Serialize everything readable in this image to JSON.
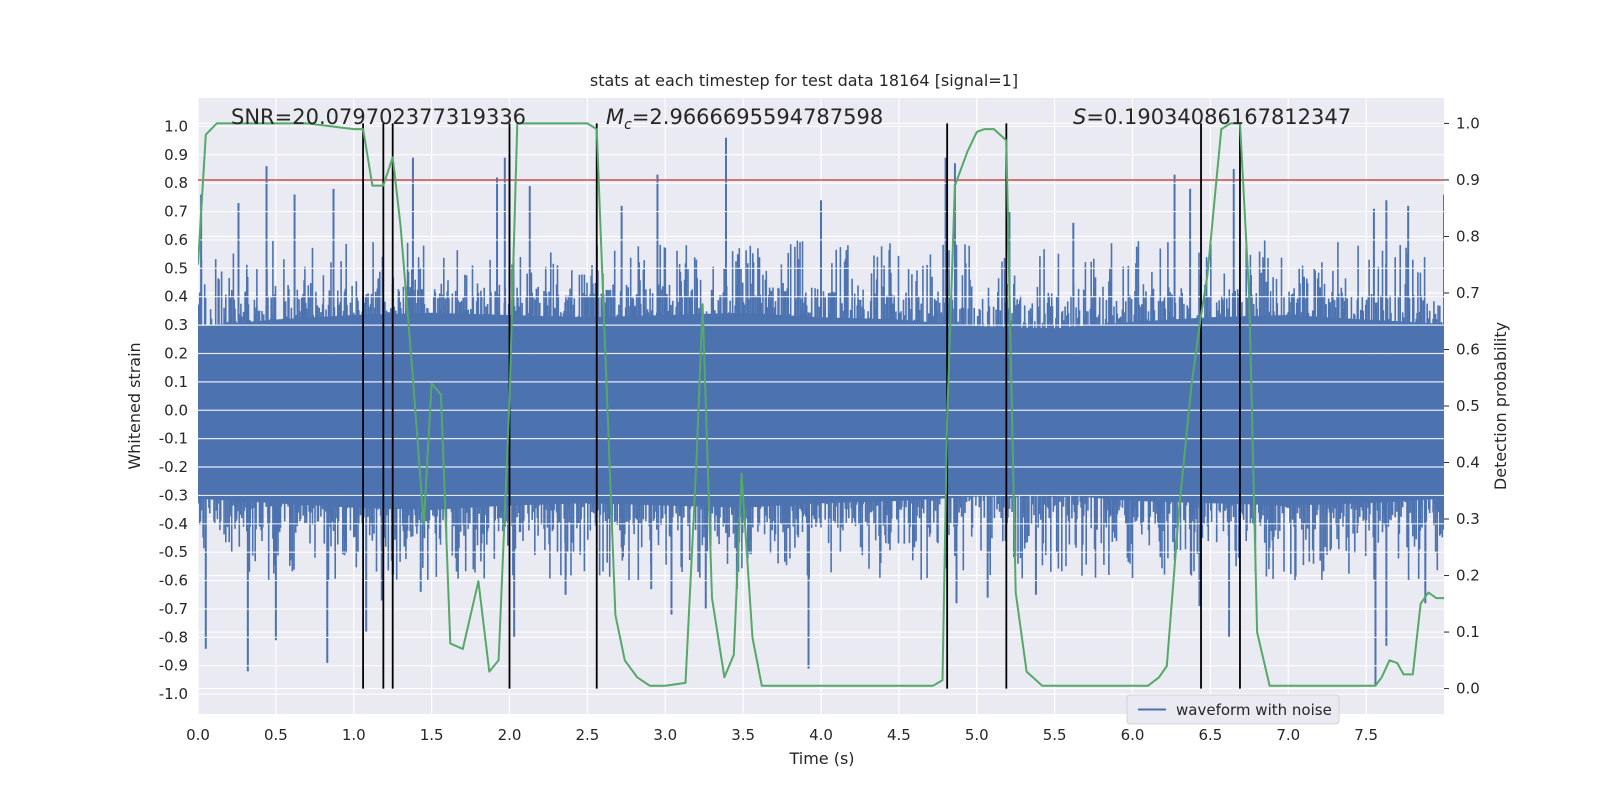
{
  "chart_data": {
    "type": "line",
    "title": "stats at each timestep for test data 18164 [signal=1]",
    "xlabel": "Time (s)",
    "ylabel": "Whitened strain",
    "ylabel_right": "Detection probability",
    "xlim": [
      0.0,
      8.0
    ],
    "ylim": [
      -1.07,
      1.1
    ],
    "ylim_right": [
      -0.045,
      1.045
    ],
    "x_ticks": [
      "0.0",
      "0.5",
      "1.0",
      "1.5",
      "2.0",
      "2.5",
      "3.0",
      "3.5",
      "4.0",
      "4.5",
      "5.0",
      "5.5",
      "6.0",
      "6.5",
      "7.0",
      "7.5"
    ],
    "y_ticks": [
      "-1.0",
      "-0.9",
      "-0.8",
      "-0.7",
      "-0.6",
      "-0.5",
      "-0.4",
      "-0.3",
      "-0.2",
      "-0.1",
      "0.0",
      "0.1",
      "0.2",
      "0.3",
      "0.4",
      "0.5",
      "0.6",
      "0.7",
      "0.8",
      "0.9",
      "1.0"
    ],
    "y_ticks_right": [
      "0.0",
      "0.1",
      "0.2",
      "0.3",
      "0.4",
      "0.5",
      "0.6",
      "0.7",
      "0.8",
      "0.9",
      "1.0"
    ],
    "annotations": {
      "snr": "SNR=20.079702377319336",
      "mc_symbol": "M",
      "mc_sub": "c",
      "mc_value": "=2.9666695594787598",
      "s_symbol": "S",
      "s_value": "=0.19034086167812347"
    },
    "threshold": {
      "value": 0.9,
      "axis": "right",
      "color": "#c44e52"
    },
    "vlines": [
      1.06,
      1.19,
      1.25,
      2.0,
      2.56,
      4.81,
      5.19,
      6.44,
      6.69
    ],
    "legend": {
      "label": "waveform with noise",
      "placement": "lower-right"
    },
    "series": [
      {
        "name": "waveform with noise",
        "color": "#4c72b0",
        "axis": "left",
        "envelope_upper": [
          0.38,
          0.41,
          0.43,
          0.44,
          0.43,
          0.42,
          0.43,
          0.44,
          0.42,
          0.41,
          0.38,
          0.37,
          0.4,
          0.42,
          0.43,
          0.41,
          0.39
        ],
        "envelope_lower": [
          -0.4,
          -0.42,
          -0.44,
          -0.45,
          -0.43,
          -0.42,
          -0.43,
          -0.44,
          -0.42,
          -0.41,
          -0.39,
          -0.38,
          -0.41,
          -0.42,
          -0.43,
          -0.42,
          -0.4
        ],
        "peaks": [
          [
            0.02,
            0.76
          ],
          [
            0.26,
            0.73
          ],
          [
            0.44,
            0.86
          ],
          [
            0.62,
            0.76
          ],
          [
            0.87,
            0.78
          ],
          [
            1.38,
            0.89
          ],
          [
            1.92,
            0.82
          ],
          [
            1.97,
            0.89
          ],
          [
            2.0,
            0.9
          ],
          [
            2.13,
            0.79
          ],
          [
            2.72,
            0.72
          ],
          [
            2.95,
            0.83
          ],
          [
            3.39,
            0.96
          ],
          [
            4.0,
            0.74
          ],
          [
            4.8,
            0.89
          ],
          [
            4.86,
            0.87
          ],
          [
            5.21,
            0.7
          ],
          [
            5.62,
            0.66
          ],
          [
            6.27,
            0.83
          ],
          [
            6.37,
            0.78
          ],
          [
            6.65,
            0.85
          ],
          [
            7.55,
            0.71
          ],
          [
            7.63,
            0.74
          ],
          [
            7.77,
            0.72
          ],
          [
            8.0,
            0.76
          ]
        ],
        "troughs": [
          [
            0.05,
            -0.84
          ],
          [
            0.32,
            -0.92
          ],
          [
            0.5,
            -0.81
          ],
          [
            0.83,
            -0.89
          ],
          [
            1.08,
            -0.78
          ],
          [
            1.18,
            -0.67
          ],
          [
            1.43,
            -0.64
          ],
          [
            2.03,
            -0.8
          ],
          [
            2.36,
            -0.65
          ],
          [
            2.91,
            -0.63
          ],
          [
            3.04,
            -0.72
          ],
          [
            3.26,
            -0.7
          ],
          [
            3.46,
            -0.63
          ],
          [
            3.92,
            -0.91
          ],
          [
            4.87,
            -0.68
          ],
          [
            5.07,
            -0.66
          ],
          [
            5.38,
            -0.65
          ],
          [
            6.43,
            -0.69
          ],
          [
            6.62,
            -0.8
          ],
          [
            7.56,
            -0.97
          ],
          [
            7.63,
            -0.83
          ],
          [
            7.88,
            -0.68
          ]
        ]
      },
      {
        "name": "Detection probability",
        "color": "#55a868",
        "axis": "right",
        "x": [
          0.0,
          0.05,
          0.12,
          0.2,
          0.4,
          0.7,
          0.85,
          1.0,
          1.06,
          1.12,
          1.19,
          1.25,
          1.3,
          1.38,
          1.45,
          1.5,
          1.56,
          1.62,
          1.7,
          1.8,
          1.87,
          1.93,
          2.0,
          2.05,
          2.15,
          2.35,
          2.5,
          2.56,
          2.6,
          2.68,
          2.74,
          2.82,
          2.9,
          3.0,
          3.13,
          3.2,
          3.24,
          3.3,
          3.38,
          3.44,
          3.49,
          3.56,
          3.62,
          3.75,
          3.9,
          4.1,
          4.4,
          4.6,
          4.72,
          4.78,
          4.81,
          4.86,
          4.94,
          5.0,
          5.05,
          5.11,
          5.19,
          5.25,
          5.32,
          5.42,
          5.6,
          5.85,
          6.1,
          6.17,
          6.22,
          6.3,
          6.38,
          6.44,
          6.48,
          6.57,
          6.63,
          6.69,
          6.75,
          6.8,
          6.88,
          7.0,
          7.2,
          7.4,
          7.56,
          7.6,
          7.65,
          7.7,
          7.74,
          7.8,
          7.85,
          7.9,
          7.95,
          8.0
        ],
        "y": [
          0.75,
          0.98,
          1.0,
          1.0,
          1.0,
          1.0,
          0.995,
          0.99,
          0.99,
          0.89,
          0.89,
          0.94,
          0.82,
          0.55,
          0.29,
          0.54,
          0.52,
          0.08,
          0.07,
          0.19,
          0.03,
          0.05,
          0.51,
          1.0,
          1.0,
          1.0,
          1.0,
          0.99,
          0.7,
          0.13,
          0.05,
          0.02,
          0.005,
          0.005,
          0.01,
          0.4,
          0.68,
          0.16,
          0.02,
          0.06,
          0.38,
          0.09,
          0.005,
          0.005,
          0.005,
          0.005,
          0.005,
          0.005,
          0.005,
          0.015,
          0.48,
          0.89,
          0.95,
          0.985,
          0.99,
          0.99,
          0.97,
          0.17,
          0.03,
          0.005,
          0.005,
          0.005,
          0.005,
          0.02,
          0.04,
          0.32,
          0.54,
          0.66,
          0.73,
          0.99,
          1.0,
          1.0,
          0.69,
          0.1,
          0.005,
          0.005,
          0.005,
          0.005,
          0.005,
          0.02,
          0.05,
          0.045,
          0.025,
          0.025,
          0.15,
          0.17,
          0.16,
          0.16
        ]
      }
    ]
  }
}
